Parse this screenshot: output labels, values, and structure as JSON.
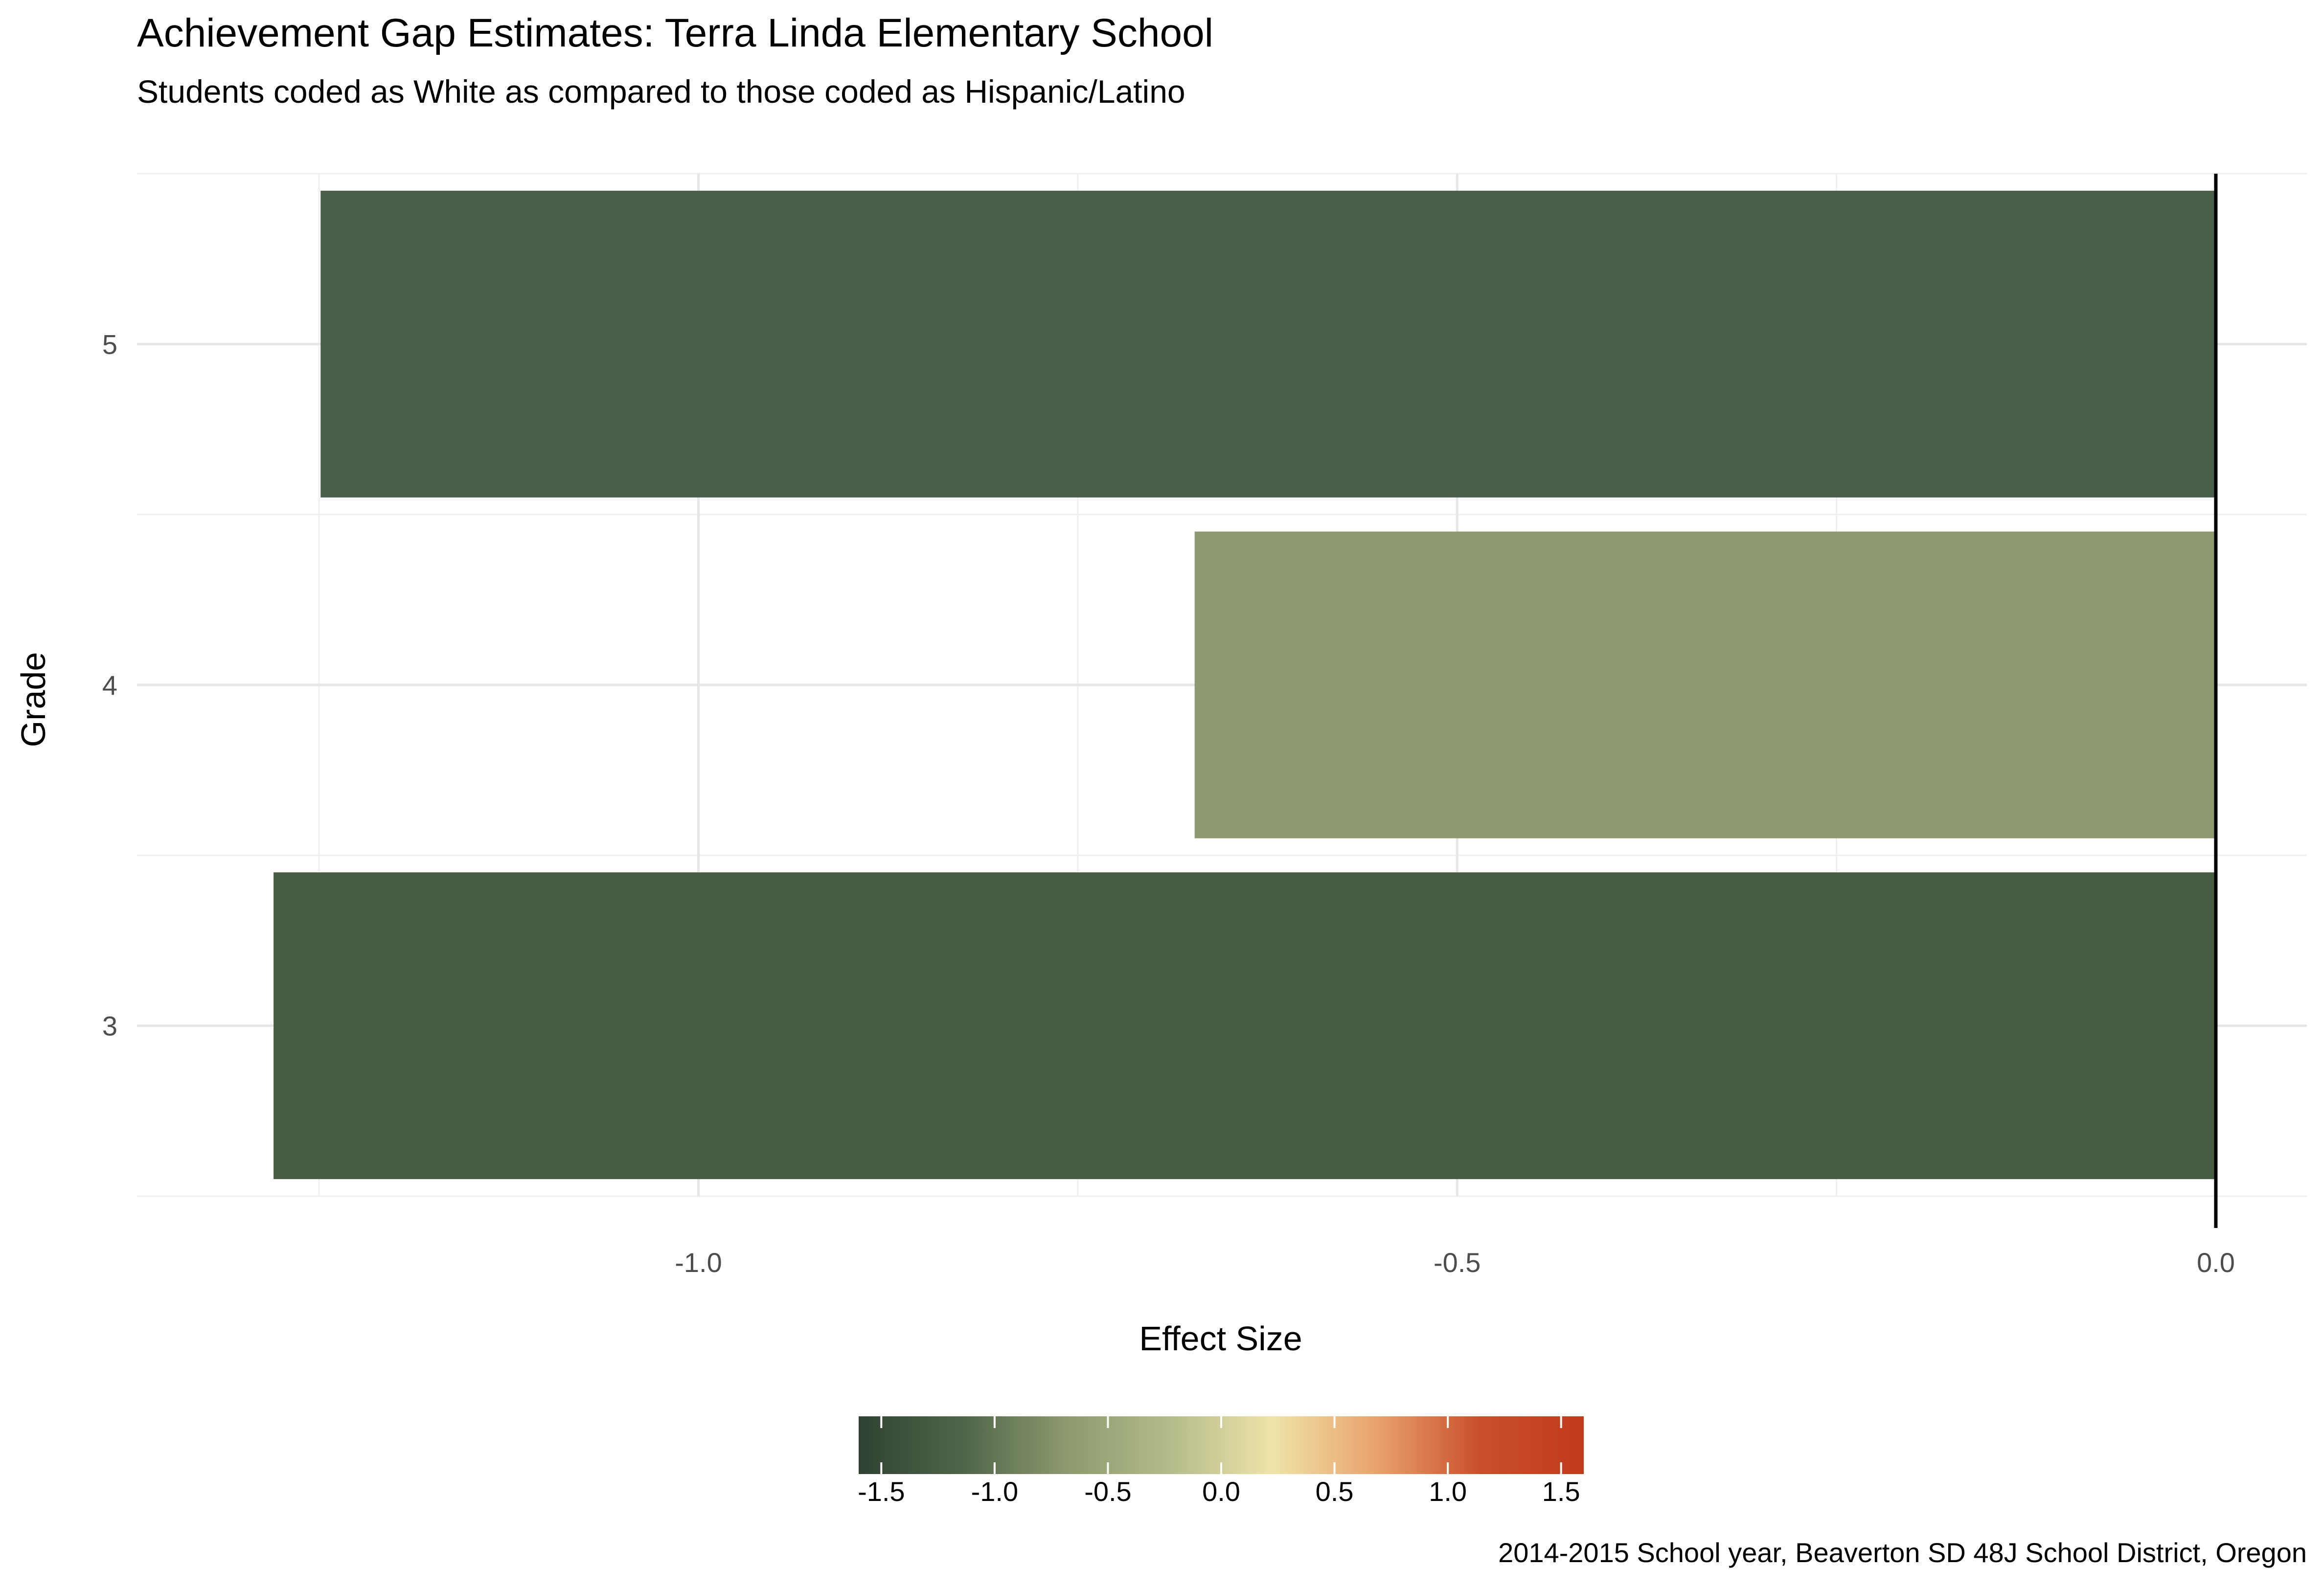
{
  "chart_data": {
    "type": "bar",
    "orientation": "horizontal",
    "title": "Achievement Gap Estimates: Terra Linda Elementary School",
    "subtitle": "Students coded as White as compared to those coded as Hispanic/Latino",
    "xlabel": "Effect Size",
    "ylabel": "Grade",
    "caption": "2014-2015 School year, Beaverton SD 48J School District, Oregon",
    "categories": [
      "3",
      "4",
      "5"
    ],
    "values": [
      -1.28,
      -0.673,
      -1.249
    ],
    "bar_colors": [
      "#465d41",
      "#8d996e",
      "#48604a"
    ],
    "xlim": [
      -1.37,
      0.06
    ],
    "x_ticks": [
      -1.0,
      -0.5,
      0.0
    ],
    "x_tick_labels": [
      "-1.0",
      "-0.5",
      "0.0"
    ],
    "reference_line_x": 0,
    "grid": true,
    "legend": {
      "type": "colorbar",
      "placement": "bottom",
      "range": [
        -1.6,
        1.6
      ],
      "ticks": [
        -1.5,
        -1.0,
        -0.5,
        0.0,
        0.5,
        1.0,
        1.5
      ],
      "tick_labels": [
        "-1.5",
        "-1.0",
        "-0.5",
        "0.0",
        "0.5",
        "1.0",
        "1.5"
      ],
      "colors": [
        "#2f4232",
        "#4f6549",
        "#8d996e",
        "#b2bb8a",
        "#efe3a8",
        "#e9a26d",
        "#c94f2a",
        "#c13a1c"
      ]
    }
  }
}
